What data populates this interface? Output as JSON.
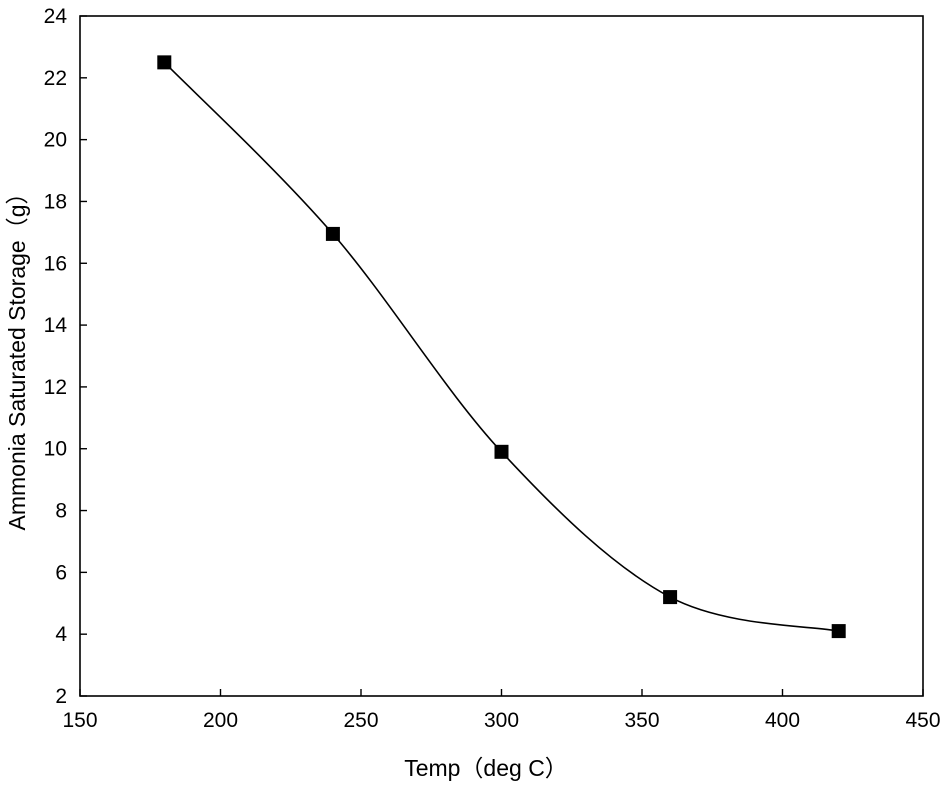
{
  "chart_data": {
    "type": "line",
    "title": "",
    "xlabel": "Temp（deg C）",
    "ylabel": "Ammonia Saturated Storage（g）",
    "xlim": [
      150,
      450
    ],
    "ylim": [
      2,
      24
    ],
    "xticks": [
      150,
      200,
      250,
      300,
      350,
      400,
      450
    ],
    "yticks": [
      2,
      4,
      6,
      8,
      10,
      12,
      14,
      16,
      18,
      20,
      22,
      24
    ],
    "grid": false,
    "legend": "none",
    "series": [
      {
        "name": "Ammonia Saturated Storage",
        "marker": "square",
        "line": "smooth",
        "x": [
          180,
          240,
          300,
          360,
          420
        ],
        "y": [
          22.5,
          16.95,
          9.9,
          5.2,
          4.1
        ]
      }
    ],
    "colors": {
      "line": "#000000",
      "marker": "#000000",
      "axis": "#000000"
    }
  }
}
